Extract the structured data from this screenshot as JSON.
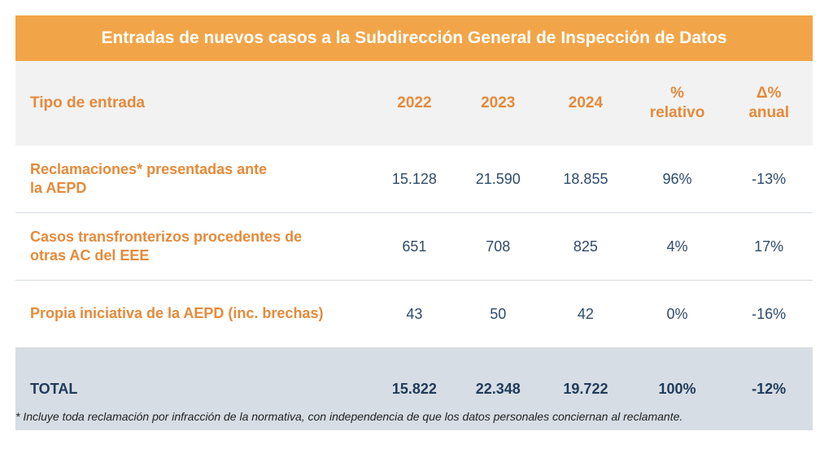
{
  "table": {
    "title": "Entradas de nuevos casos a la Subdirección General de Inspección de Datos",
    "headers": {
      "type": "Tipo de entrada",
      "y2022": "2022",
      "y2023": "2023",
      "y2024": "2024",
      "relative_line1": "%",
      "relative_line2": "relativo",
      "annual_line1": "Δ%",
      "annual_line2": "anual"
    },
    "rows": [
      {
        "label_line1": "Reclamaciones* presentadas ante",
        "label_line2": "la AEPD",
        "y2022": "15.128",
        "y2023": "21.590",
        "y2024": "18.855",
        "relative": "96%",
        "annual": "-13%"
      },
      {
        "label_line1": "Casos transfronterizos procedentes de",
        "label_line2": "otras AC del EEE",
        "y2022": "651",
        "y2023": "708",
        "y2024": "825",
        "relative": "4%",
        "annual": "17%"
      },
      {
        "label_line1": "Propia iniciativa de la AEPD (inc. brechas)",
        "label_line2": "",
        "y2022": "43",
        "y2023": "50",
        "y2024": "42",
        "relative": "0%",
        "annual": "-16%"
      }
    ],
    "total": {
      "label": "TOTAL",
      "y2022": "15.822",
      "y2023": "22.348",
      "y2024": "19.722",
      "relative": "100%",
      "annual": "-12%"
    }
  },
  "footnote": "* Incluye toda reclamación por infracción de la normativa, con independencia de que los datos personales conciernan al reclamante."
}
